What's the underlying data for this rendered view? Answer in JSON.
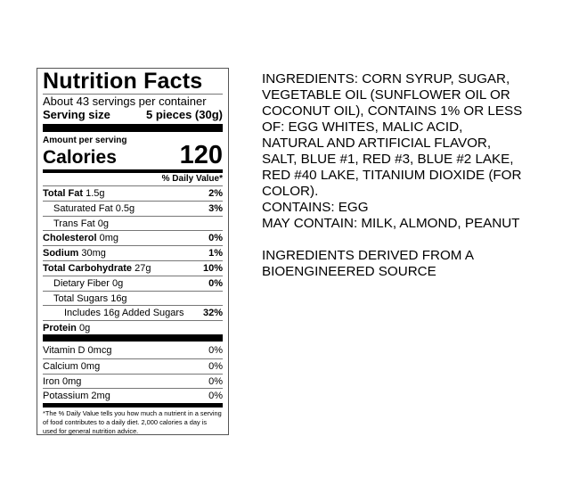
{
  "label": {
    "title": "Nutrition Facts",
    "servings": "About 43 servings per container",
    "serving_size_label": "Serving size",
    "serving_size_value": "5 pieces (30g)",
    "amount_per_serving": "Amount per serving",
    "calories_label": "Calories",
    "calories_value": "120",
    "dv_header": "% Daily Value*",
    "nutrients": [
      {
        "name": "Total Fat",
        "amount": "1.5g",
        "dv": "2%"
      },
      {
        "name": "Saturated Fat 0.5g",
        "amount": "",
        "dv": "3%"
      },
      {
        "name": "Trans Fat 0g",
        "amount": "",
        "dv": ""
      },
      {
        "name": "Cholesterol",
        "amount": "0mg",
        "dv": "0%"
      },
      {
        "name": "Sodium",
        "amount": "30mg",
        "dv": "1%"
      },
      {
        "name": "Total Carbohydrate",
        "amount": "27g",
        "dv": "10%"
      },
      {
        "name": "Dietary Fiber 0g",
        "amount": "",
        "dv": "0%"
      },
      {
        "name": "Total Sugars 16g",
        "amount": "",
        "dv": ""
      },
      {
        "name": "Includes 16g Added Sugars",
        "amount": "",
        "dv": "32%"
      },
      {
        "name": "Protein",
        "amount": "0g",
        "dv": ""
      }
    ],
    "vitamins": [
      {
        "name": "Vitamin D 0mcg",
        "dv": "0%"
      },
      {
        "name": "Calcium 0mg",
        "dv": "0%"
      },
      {
        "name": "Iron 0mg",
        "dv": "0%"
      },
      {
        "name": "Potassium 2mg",
        "dv": "0%"
      }
    ],
    "footnote": "*The % Daily Value tells you how much a nutrient in a serving of food contributes to a daily diet. 2,000 calories a day is used for general nutrition advice."
  },
  "ingredients": {
    "lines": [
      "INGREDIENTS: CORN SYRUP, SUGAR,",
      "VEGETABLE OIL (SUNFLOWER OIL OR",
      "COCONUT OIL), CONTAINS 1% OR LESS",
      "OF: EGG WHITES, MALIC ACID,",
      "NATURAL AND ARTIFICIAL FLAVOR,",
      "SALT, BLUE #1, RED #3, BLUE #2 LAKE,",
      "RED #40 LAKE, TITANIUM DIOXIDE (FOR",
      "COLOR).",
      "CONTAINS: EGG",
      "MAY CONTAIN: MILK, ALMOND, PEANUT",
      "",
      "INGREDIENTS DERIVED FROM A",
      "BIOENGINEERED SOURCE"
    ]
  }
}
